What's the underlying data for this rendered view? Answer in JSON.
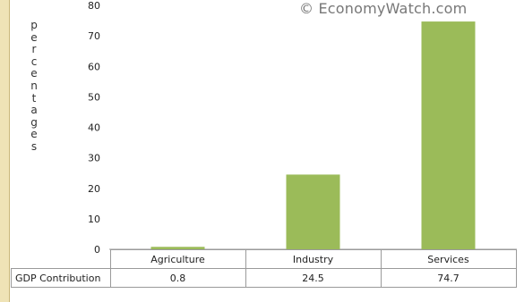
{
  "chart_data": {
    "type": "bar",
    "categories": [
      "Agriculture",
      "Industry",
      "Services"
    ],
    "series": [
      {
        "name": "GDP Contribution",
        "values": [
          0.8,
          24.5,
          74.7
        ]
      }
    ],
    "value_labels": [
      "0.8",
      "24.5",
      "74.7"
    ],
    "ylabel": "percentages",
    "ylim": [
      0,
      80
    ],
    "yticks": [
      0,
      10,
      20,
      30,
      40,
      50,
      60,
      70,
      80
    ],
    "grid": false,
    "bar_color": "#9bbb59",
    "data_table_row_label": "GDP Contribution"
  },
  "watermark": "© EconomyWatch.com"
}
